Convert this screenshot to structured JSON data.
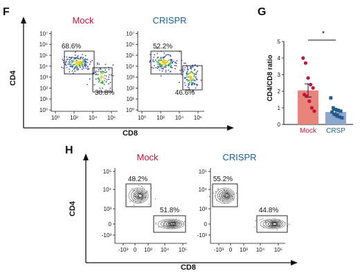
{
  "panels": {
    "F": {
      "letter": "F",
      "titles": [
        "Mock",
        "CRISPR"
      ],
      "x_axis_label": "CD8",
      "y_axis_label": "CD4",
      "x_ticks": [
        "10⁰",
        "10²",
        "10⁴",
        "10⁶"
      ],
      "y_ticks": [
        "10⁰",
        "10¹",
        "10²",
        "10³",
        "10⁴",
        "10⁵",
        "10⁶",
        "10⁷"
      ],
      "plots": [
        {
          "name": "Mock",
          "gate_cd4": "68.6%",
          "gate_cd8": "30.8%"
        },
        {
          "name": "CRISPR",
          "gate_cd4": "52.2%",
          "gate_cd8": "46.6%"
        }
      ]
    },
    "G": {
      "letter": "G",
      "sig_label": "*"
    },
    "H": {
      "letter": "H",
      "titles": [
        "Mock",
        "CRISPR"
      ],
      "x_axis_label": "CD8",
      "y_axis_label": "CD4",
      "x_ticks": [
        "-10³",
        "0",
        "10³",
        "10⁴",
        "10⁵"
      ],
      "y_ticks": [
        "-10³",
        "0",
        "10³",
        "10⁴",
        "10⁵"
      ],
      "plots": [
        {
          "name": "Mock",
          "gate_cd4": "48.2%",
          "gate_cd8": "51.8%"
        },
        {
          "name": "CRISPR",
          "gate_cd4": "55.2%",
          "gate_cd8": "44.8%"
        }
      ]
    }
  },
  "colors": {
    "mock": "#c0143c",
    "crispr": "#1b5e8f",
    "mock_bar": "#e8857a",
    "crsp_bar": "#8fa6cf"
  },
  "chart_data": {
    "type": "bar",
    "categories": [
      "Mock",
      "CRSP"
    ],
    "ylabel": "CD4/CD8 ratio",
    "ylim": [
      0,
      5
    ],
    "y_ticks": [
      0,
      1,
      2,
      3,
      4,
      5
    ],
    "series": [
      {
        "values": [
          2.05,
          0.75
        ],
        "errors": [
          0.4,
          0.12
        ],
        "points": [
          [
            4.0,
            3.7,
            2.8,
            2.4,
            2.2,
            1.8,
            1.7,
            1.4,
            1.0,
            0.8
          ],
          [
            1.6,
            1.0,
            0.9,
            0.85,
            0.8,
            0.75,
            0.6,
            0.5,
            0.45,
            0.4
          ]
        ]
      }
    ]
  }
}
